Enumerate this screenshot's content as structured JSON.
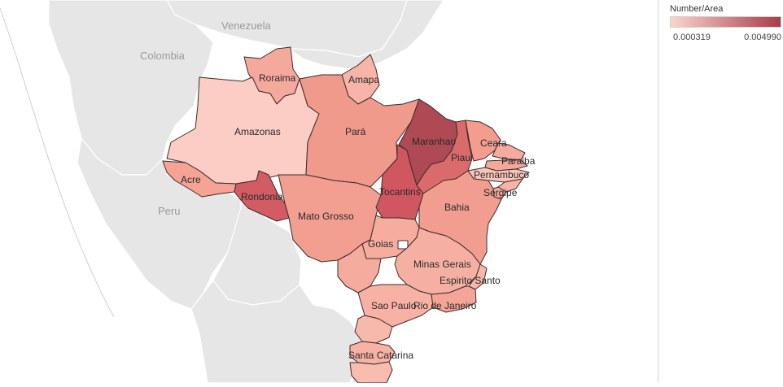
{
  "legend": {
    "title": "Number/Area",
    "min_label": "0.000319",
    "max_label": "0.004990",
    "min_color": "#fbd5cd",
    "max_color": "#a83d47"
  },
  "countries": [
    {
      "id": "venezuela",
      "label": "Venezuela"
    },
    {
      "id": "colombia",
      "label": "Colombia"
    },
    {
      "id": "peru",
      "label": "Peru"
    }
  ],
  "states": [
    {
      "id": "roraima",
      "label": "Roraima",
      "color": "#f5a99c"
    },
    {
      "id": "amapa",
      "label": "Amapa",
      "color": "#f7b4a8"
    },
    {
      "id": "amazonas",
      "label": "Amazonas",
      "color": "#fbcdc5"
    },
    {
      "id": "para",
      "label": "Pará",
      "color": "#f09a8c"
    },
    {
      "id": "maranhao",
      "label": "Maranhao",
      "color": "#ae4a53"
    },
    {
      "id": "piaui",
      "label": "Piaui",
      "color": "#da6b6d"
    },
    {
      "id": "ceara",
      "label": "Ceara",
      "color": "#f29d8e"
    },
    {
      "id": "rio-grande-do-norte",
      "label": "",
      "color": "#f6ab9f"
    },
    {
      "id": "paraiba",
      "label": "Paraiba",
      "color": "#f5a799"
    },
    {
      "id": "pernambuco",
      "label": "Pernambuco",
      "color": "#f9c4b9"
    },
    {
      "id": "alagoas",
      "label": "",
      "color": "#f7b3a7"
    },
    {
      "id": "sergipe",
      "label": "Sergipe",
      "color": "#f5a89b"
    },
    {
      "id": "acre",
      "label": "Acre",
      "color": "#f4a395"
    },
    {
      "id": "rondonia",
      "label": "Rondonia",
      "color": "#d35c64"
    },
    {
      "id": "mato-grosso",
      "label": "Mato Grosso",
      "color": "#f29e90"
    },
    {
      "id": "tocantins",
      "label": "Tocantins",
      "color": "#d0575f"
    },
    {
      "id": "bahia",
      "label": "Bahia",
      "color": "#f19d8f"
    },
    {
      "id": "goias",
      "label": "Goias",
      "color": "#f6ad9f"
    },
    {
      "id": "distrito-federal",
      "label": "",
      "color": "#ffffff"
    },
    {
      "id": "mato-grosso-do-sul",
      "label": "",
      "color": "#f5ab9e"
    },
    {
      "id": "minas-gerais",
      "label": "Minas Gerais",
      "color": "#f6b0a3"
    },
    {
      "id": "espirito-santo",
      "label": "Espirito Santo",
      "color": "#f7b7ab"
    },
    {
      "id": "rio-de-janeiro",
      "label": "Rio de Janeiro",
      "color": "#f5a598"
    },
    {
      "id": "sao-paulo",
      "label": "Sao Paulo",
      "color": "#f7b2a5"
    },
    {
      "id": "parana",
      "label": "",
      "color": "#f8b9ad"
    },
    {
      "id": "santa-catarina",
      "label": "Santa Catarina",
      "color": "#f7b2a5"
    },
    {
      "id": "rio-grande-do-sul",
      "label": "",
      "color": "#f8bcb0"
    }
  ]
}
